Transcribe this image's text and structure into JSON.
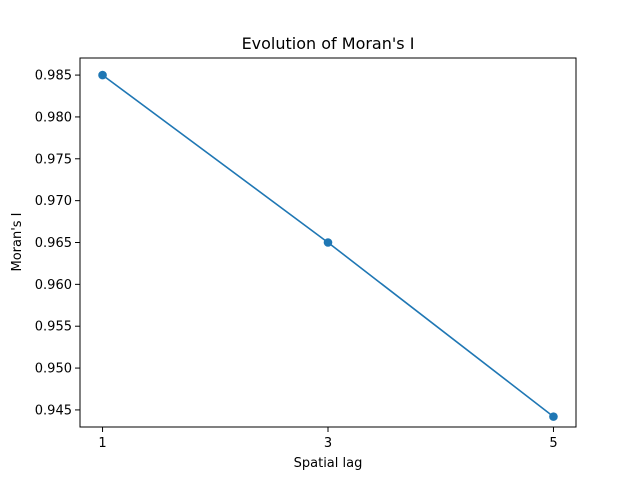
{
  "chart_data": {
    "type": "line",
    "title": "Evolution of Moran's I",
    "xlabel": "Spatial lag",
    "ylabel": "Moran's I",
    "x": [
      1,
      3,
      5
    ],
    "series": [
      {
        "values": [
          0.985,
          0.965,
          0.9442
        ],
        "color": "#1f77b4",
        "marker": "circle"
      }
    ],
    "xticks": [
      "1",
      "3",
      "5"
    ],
    "yticks": [
      "0.945",
      "0.950",
      "0.955",
      "0.960",
      "0.965",
      "0.970",
      "0.975",
      "0.980",
      "0.985"
    ],
    "xlim": [
      0.8,
      5.2
    ],
    "ylim": [
      0.94296,
      0.98704
    ],
    "grid": false
  }
}
